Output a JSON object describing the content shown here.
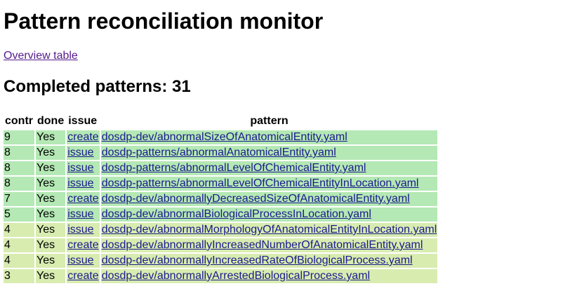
{
  "page": {
    "title": "Pattern reconciliation monitor",
    "overview_link": "Overview table",
    "section_title": "Completed patterns: 31"
  },
  "table": {
    "headers": {
      "contr": "contr",
      "done": "done",
      "issue": "issue",
      "pattern": "pattern"
    },
    "rows": [
      {
        "contr": "9",
        "done": "Yes",
        "issue": "create",
        "pattern": "dosdp-dev/abnormalSizeOfAnatomicalEntity.yaml",
        "tone": "green"
      },
      {
        "contr": "8",
        "done": "Yes",
        "issue": "issue",
        "pattern": "dosdp-patterns/abnormalAnatomicalEntity.yaml",
        "tone": "green"
      },
      {
        "contr": "8",
        "done": "Yes",
        "issue": "issue",
        "pattern": "dosdp-patterns/abnormalLevelOfChemicalEntity.yaml",
        "tone": "green"
      },
      {
        "contr": "8",
        "done": "Yes",
        "issue": "issue",
        "pattern": "dosdp-patterns/abnormalLevelOfChemicalEntityInLocation.yaml",
        "tone": "green"
      },
      {
        "contr": "7",
        "done": "Yes",
        "issue": "create",
        "pattern": "dosdp-dev/abnormallyDecreasedSizeOfAnatomicalEntity.yaml",
        "tone": "green"
      },
      {
        "contr": "5",
        "done": "Yes",
        "issue": "issue",
        "pattern": "dosdp-dev/abnormalBiologicalProcessInLocation.yaml",
        "tone": "green"
      },
      {
        "contr": "4",
        "done": "Yes",
        "issue": "issue",
        "pattern": "dosdp-dev/abnormalMorphologyOfAnatomicalEntityInLocation.yaml",
        "tone": "lime"
      },
      {
        "contr": "4",
        "done": "Yes",
        "issue": "create",
        "pattern": "dosdp-dev/abnormallyIncreasedNumberOfAnatomicalEntity.yaml",
        "tone": "lime"
      },
      {
        "contr": "4",
        "done": "Yes",
        "issue": "issue",
        "pattern": "dosdp-dev/abnormallyIncreasedRateOfBiologicalProcess.yaml",
        "tone": "lime"
      },
      {
        "contr": "3",
        "done": "Yes",
        "issue": "create",
        "pattern": "dosdp-dev/abnormallyArrestedBiologicalProcess.yaml",
        "tone": "lime"
      },
      {
        "contr": "",
        "done": "",
        "issue": "",
        "pattern": "",
        "tone": "lime"
      }
    ]
  },
  "colors": {
    "row_green": "#b4e8b4",
    "row_lime": "#d8ecb0",
    "visited_link": "#551a8b",
    "link": "#1a1a8c"
  }
}
